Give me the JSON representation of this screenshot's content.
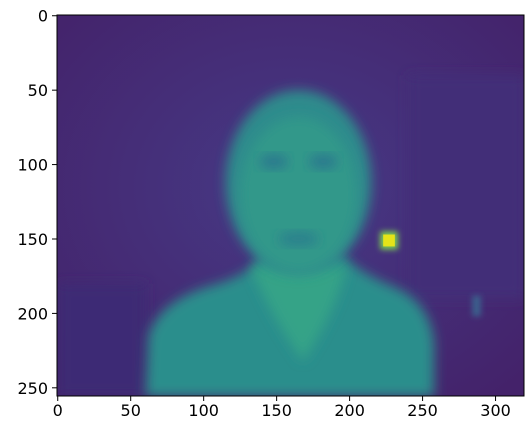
{
  "chart_data": {
    "type": "image",
    "xlim": [
      -0.5,
      319.5
    ],
    "ylim": [
      255.5,
      -0.5
    ],
    "xticks": [
      0,
      50,
      100,
      150,
      200,
      250,
      300
    ],
    "yticks": [
      0,
      50,
      100,
      150,
      200,
      250
    ]
  }
}
